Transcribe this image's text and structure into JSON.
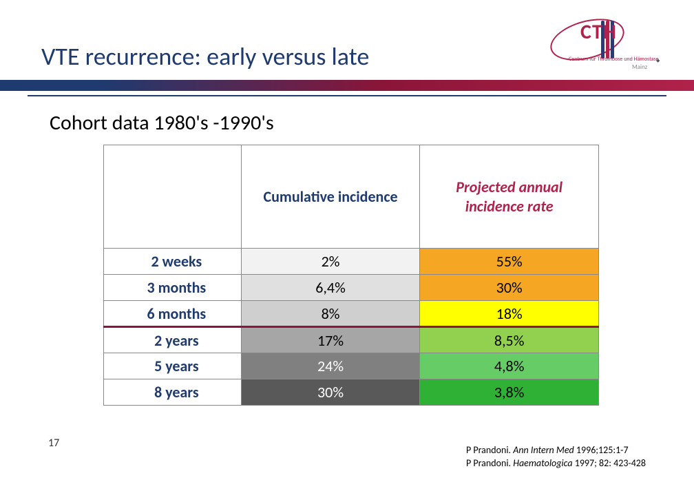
{
  "logo": {
    "big": "CTH",
    "sub": "Centrum für Thrombose\nund Hämostase",
    "city": "Mainz"
  },
  "title": "VTE recurrence: early versus late",
  "subtitle": "Cohort data 1980's -1990's",
  "headers": {
    "ci": "Cumulative incidence",
    "pair_l1": "Projected annual",
    "pair_l2": "incidence rate"
  },
  "rows": [
    {
      "label": "2 weeks",
      "ci": "2%",
      "ci_bg": "#f2f2f2",
      "pair": "55%",
      "pair_bg": "#f5a623"
    },
    {
      "label": "3 months",
      "ci": "6,4%",
      "ci_bg": "#e0e0e0",
      "pair": "30%",
      "pair_bg": "#f5a623"
    },
    {
      "label": "6 months",
      "ci": "8%",
      "ci_bg": "#cfcfcf",
      "pair": "18%",
      "pair_bg": "#ffff00",
      "divider": true
    },
    {
      "label": "2 years",
      "ci": "17%",
      "ci_bg": "#a6a6a6",
      "pair": "8,5%",
      "pair_bg": "#92d050"
    },
    {
      "label": "5 years",
      "ci": "24%",
      "ci_bg": "#808080",
      "pair": "4,8%",
      "pair_bg": "#66cc66"
    },
    {
      "label": "8 years",
      "ci": "30%",
      "ci_bg": "#595959",
      "pair": "3,8%",
      "pair_bg": "#2eb135"
    }
  ],
  "ci_text_color_dark": "#000000",
  "ci_text_color_light": "#ffffff",
  "page_number": "17",
  "references": [
    {
      "prefix": "P Prandoni. ",
      "ital": "Ann Intern Med",
      "suffix": " 1996;125:1-7"
    },
    {
      "prefix": "P Prandoni. ",
      "ital": "Haematologica",
      "suffix": " 1997; 82: 423-428"
    }
  ]
}
